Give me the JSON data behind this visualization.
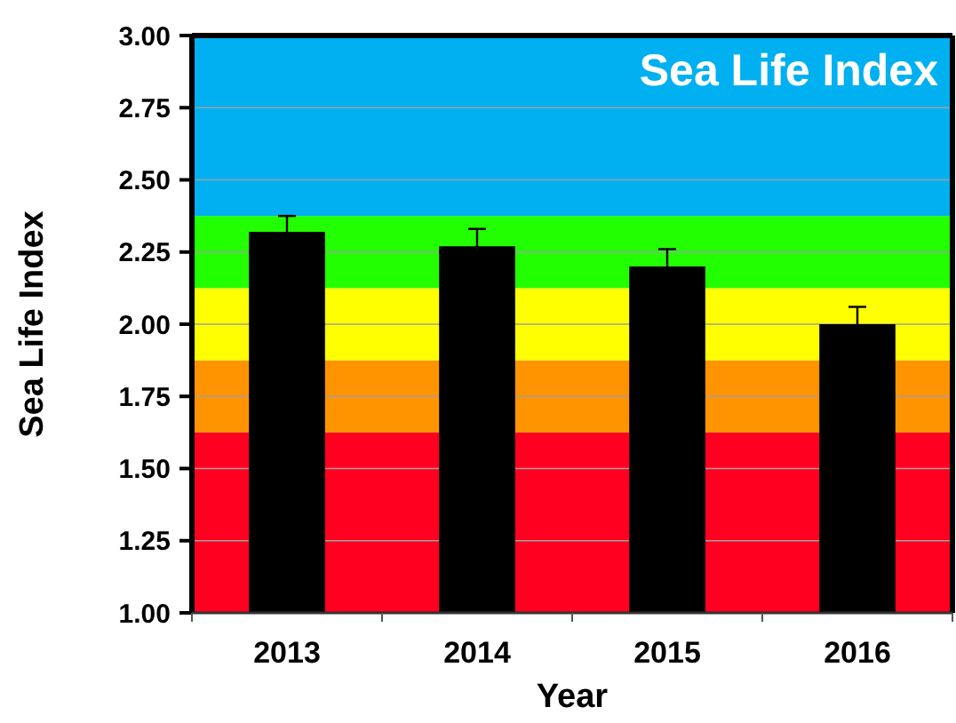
{
  "chart_data": {
    "type": "bar",
    "title": "Sea Life Index",
    "xlabel": "Year",
    "ylabel": "Sea Life Index",
    "categories": [
      "2013",
      "2014",
      "2015",
      "2016"
    ],
    "values": [
      2.32,
      2.27,
      2.2,
      2.0
    ],
    "color": "#000000",
    "errors": [
      0.055,
      0.06,
      0.06,
      0.06
    ],
    "ylim": [
      1,
      3
    ],
    "yticks": [
      {
        "value": 1,
        "label": "1.00"
      },
      {
        "value": 1.25,
        "label": "1.25"
      },
      {
        "value": 1.5,
        "label": "1.50"
      },
      {
        "value": 1.75,
        "label": "1.75"
      },
      {
        "value": 2,
        "label": "2.00"
      },
      {
        "value": 2.25,
        "label": "2.25"
      },
      {
        "value": 2.5,
        "label": "2.50"
      },
      {
        "value": 2.75,
        "label": "2.75"
      },
      {
        "value": 3,
        "label": "3.00"
      }
    ],
    "grid": "y",
    "bands": [
      {
        "axis": "y",
        "from": 1,
        "to": 1.625,
        "color": "#ff0020"
      },
      {
        "axis": "y",
        "from": 1.625,
        "to": 1.875,
        "color": "#ff9400"
      },
      {
        "axis": "y",
        "from": 1.875,
        "to": 2.125,
        "color": "#ffff00"
      },
      {
        "axis": "y",
        "from": 2.125,
        "to": 2.375,
        "color": "#22ff00"
      },
      {
        "axis": "y",
        "from": 2.375,
        "to": 3,
        "color": "#00b0f0"
      }
    ]
  }
}
